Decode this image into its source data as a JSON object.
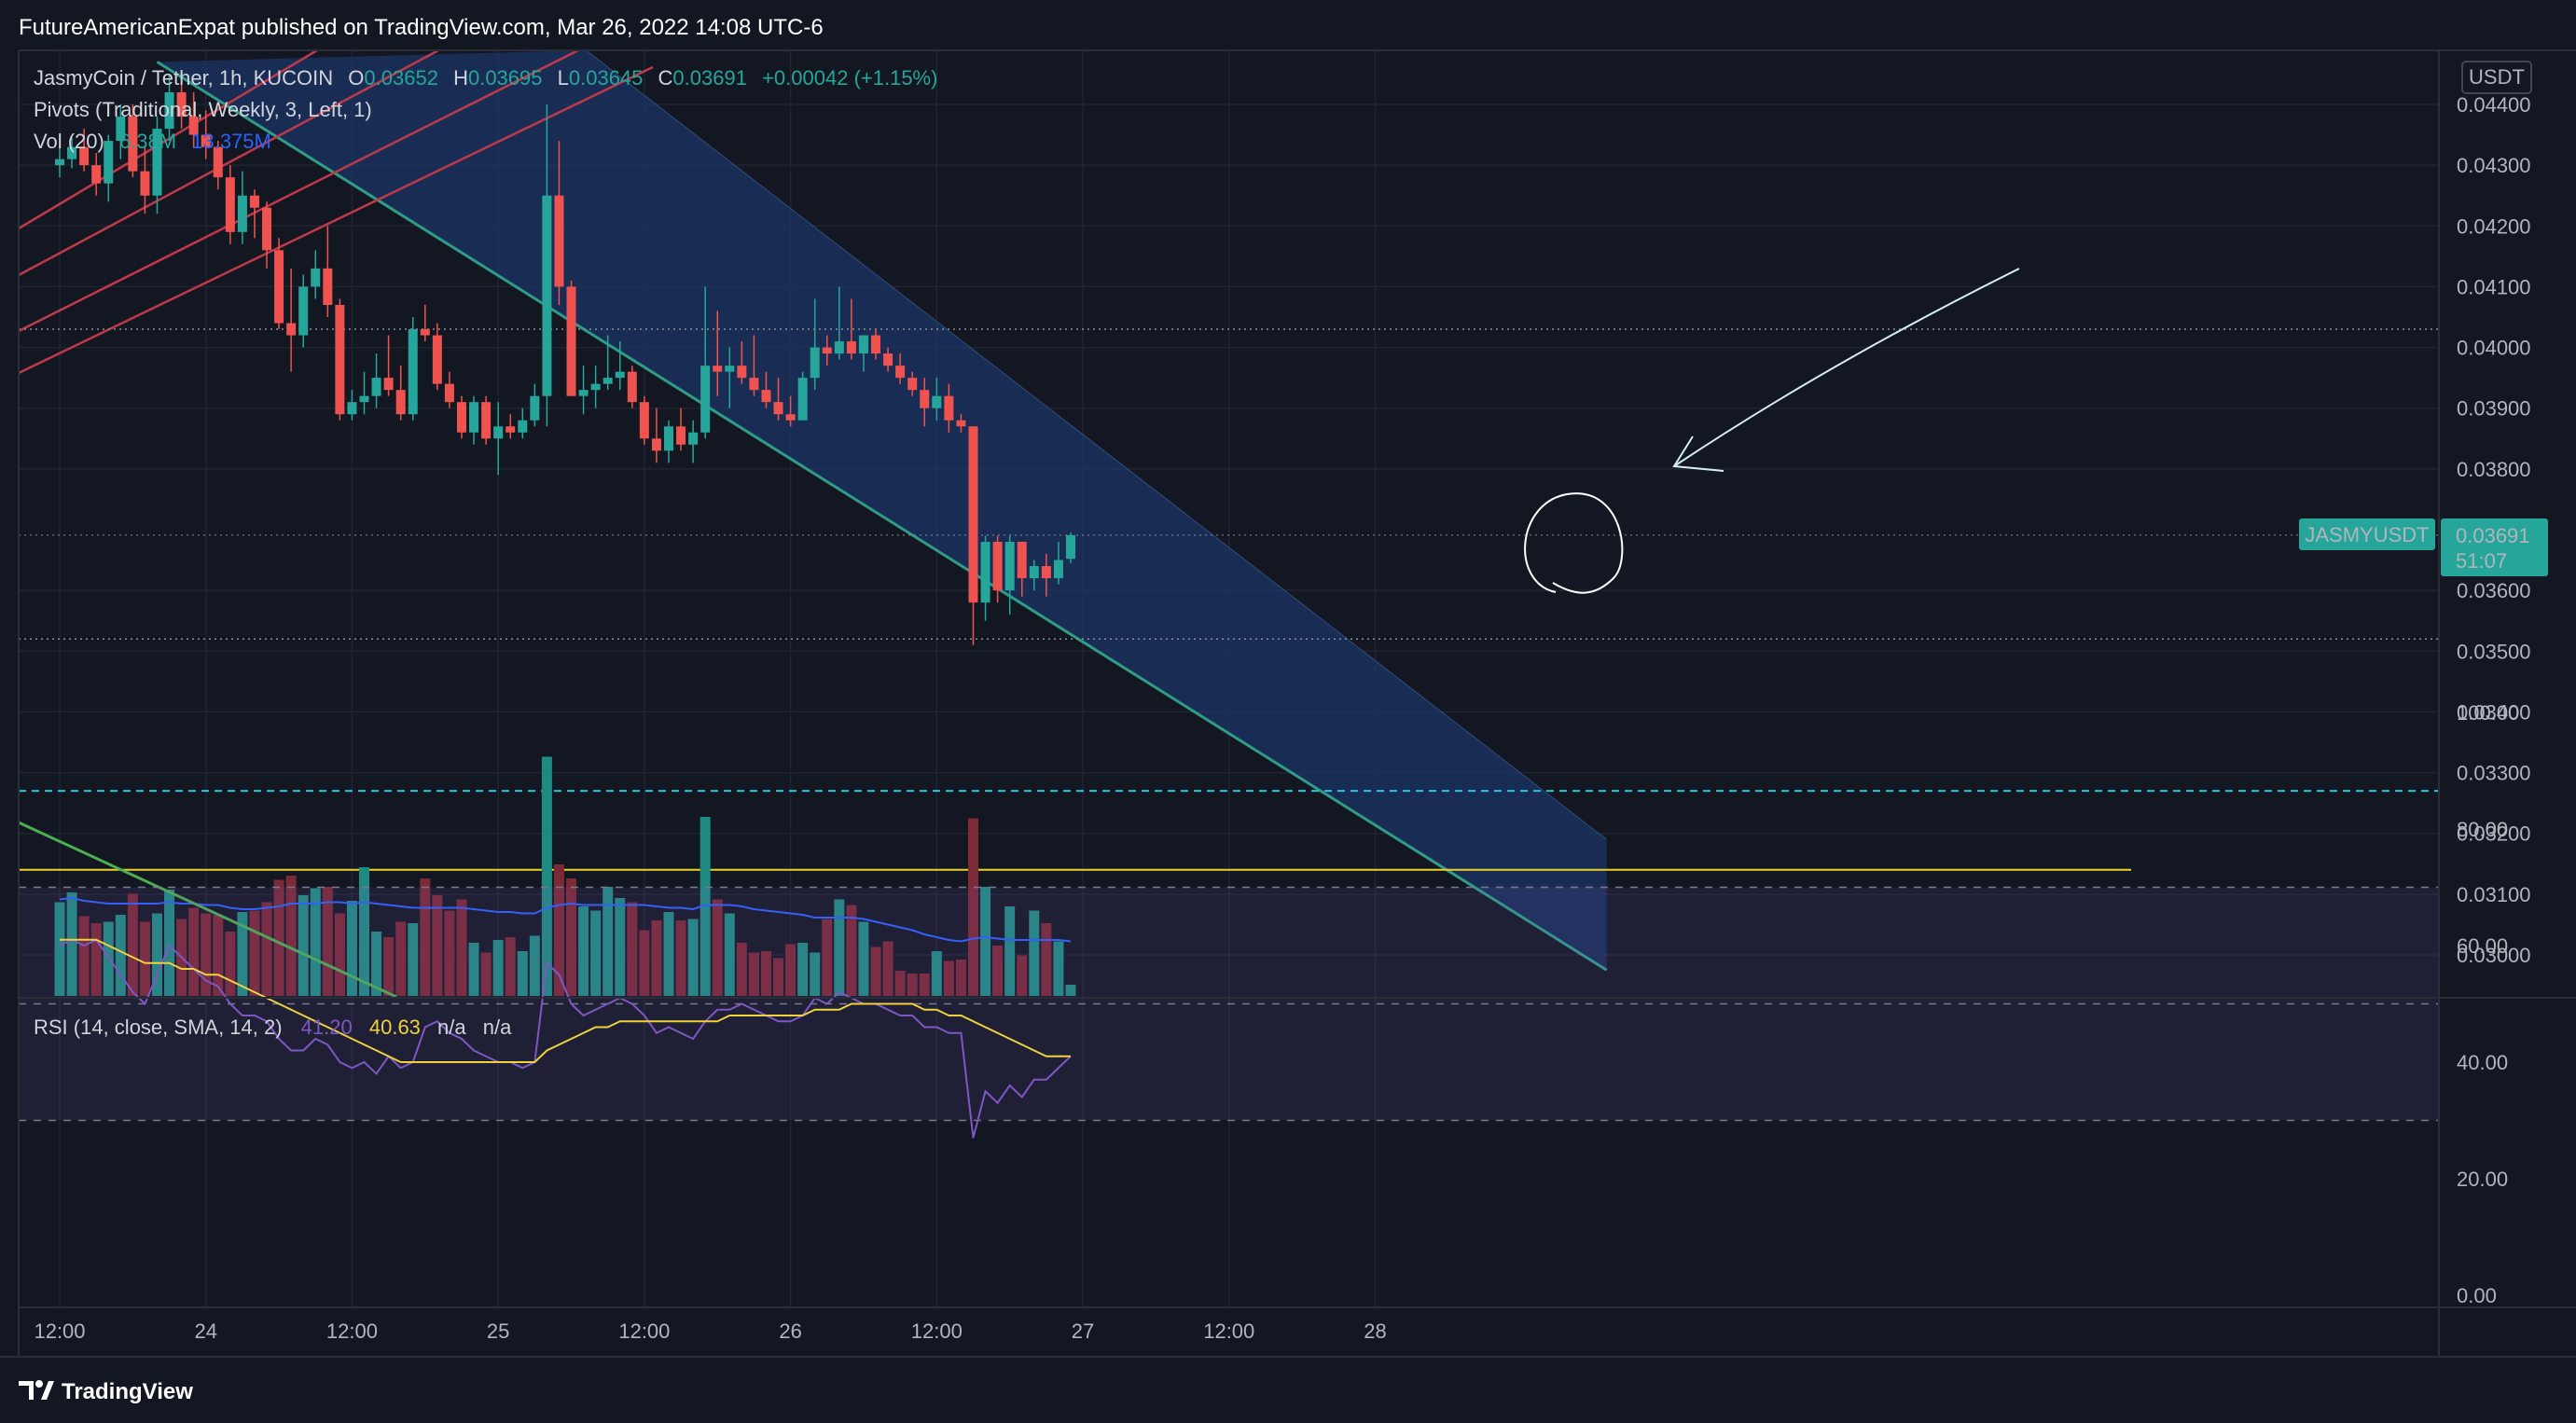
{
  "header": {
    "publish_text": "FutureAmericanExpat published on TradingView.com, Mar 26, 2022 14:08 UTC-6"
  },
  "footer": {
    "brand": "TradingView"
  },
  "legend": {
    "symbol": "JasmyCoin / Tether, 1h, KUCOIN",
    "o_label": "O",
    "o_value": "0.03652",
    "h_label": "H",
    "h_value": "0.03695",
    "l_label": "L",
    "l_value": "0.03645",
    "c_label": "C",
    "c_value": "0.03691",
    "change": "+0.00042 (+1.15%)",
    "pivots": "Pivots (Traditional, Weekly, 3, Left, 1)",
    "vol_label": "Vol (20)",
    "vol_value_1": "6.38M",
    "vol_value_2": "13.375M"
  },
  "price_axis": {
    "currency": "USDT",
    "ticks": [
      "0.04400",
      "0.04300",
      "0.04200",
      "0.04100",
      "0.04000",
      "0.03900",
      "0.03800",
      "0.03600",
      "0.03500",
      "0.03400",
      "0.03300",
      "0.03200",
      "0.03100",
      "0.03000"
    ]
  },
  "last_price": {
    "symbol": "JASMYUSDT",
    "price": "0.03691",
    "countdown": "51:07"
  },
  "rsi": {
    "label": "RSI (14, close, SMA, 14, 2)",
    "value": "41.20",
    "sma": "40.63",
    "extra_1": "n/a",
    "extra_2": "n/a",
    "ticks": [
      "100.00",
      "80.00",
      "60.00",
      "40.00",
      "20.00",
      "0.00"
    ]
  },
  "time_axis": {
    "labels": [
      "12:00",
      "24",
      "12:00",
      "25",
      "12:00",
      "26",
      "12:00",
      "27",
      "12:00",
      "28"
    ]
  },
  "colors": {
    "bg": "#131722",
    "up": "#26a69a",
    "down": "#ef5350",
    "vol_up": "#1f8a80",
    "vol_down": "#7c2a36",
    "channel_fill": "#1c3566",
    "channel_line": "#2e9c86",
    "vol_ma": "#2962ff",
    "rsi_line": "#7e57c2",
    "rsi_sma": "#f0d23c",
    "yellow_line": "#e8d22a",
    "cyan_dash": "#26c6da"
  },
  "chart_data": {
    "type": "candlestick",
    "title": "JasmyCoin / Tether, 1h, KUCOIN",
    "x_start": "2022-03-23 12:00",
    "x_interval_hours": 1,
    "x_axis_range": [
      "2022-03-23 11:00",
      "2022-03-28 19:00"
    ],
    "y_axis_range": [
      0.0295,
      0.0445
    ],
    "ohlc": [
      [
        0.043,
        0.0433,
        0.0428,
        0.0431
      ],
      [
        0.0431,
        0.04345,
        0.04295,
        0.0433
      ],
      [
        0.0433,
        0.0436,
        0.0429,
        0.043
      ],
      [
        0.043,
        0.0432,
        0.0425,
        0.0427
      ],
      [
        0.0427,
        0.0435,
        0.0424,
        0.0434
      ],
      [
        0.0434,
        0.044,
        0.0431,
        0.0438
      ],
      [
        0.0438,
        0.044,
        0.0428,
        0.0429
      ],
      [
        0.0429,
        0.0433,
        0.0422,
        0.0425
      ],
      [
        0.0425,
        0.0438,
        0.0422,
        0.0436
      ],
      [
        0.0436,
        0.0445,
        0.0434,
        0.0442
      ],
      [
        0.0442,
        0.0445,
        0.0436,
        0.0438
      ],
      [
        0.0438,
        0.0442,
        0.0433,
        0.0435
      ],
      [
        0.0435,
        0.0439,
        0.0431,
        0.0433
      ],
      [
        0.0433,
        0.0434,
        0.0426,
        0.0428
      ],
      [
        0.0428,
        0.043,
        0.0417,
        0.0419
      ],
      [
        0.0419,
        0.0429,
        0.0417,
        0.0425
      ],
      [
        0.0425,
        0.0426,
        0.0418,
        0.0423
      ],
      [
        0.0423,
        0.0424,
        0.0413,
        0.0416
      ],
      [
        0.0416,
        0.0418,
        0.0403,
        0.0404
      ],
      [
        0.0404,
        0.0413,
        0.0396,
        0.0402
      ],
      [
        0.0402,
        0.0412,
        0.04,
        0.041
      ],
      [
        0.041,
        0.0416,
        0.0408,
        0.0413
      ],
      [
        0.0413,
        0.042,
        0.0405,
        0.0407
      ],
      [
        0.0407,
        0.0408,
        0.0388,
        0.0389
      ],
      [
        0.0389,
        0.0393,
        0.0388,
        0.0391
      ],
      [
        0.0391,
        0.0396,
        0.0389,
        0.0392
      ],
      [
        0.0392,
        0.0399,
        0.039,
        0.0395
      ],
      [
        0.0395,
        0.0402,
        0.0392,
        0.0393
      ],
      [
        0.0393,
        0.0397,
        0.0388,
        0.0389
      ],
      [
        0.0389,
        0.0405,
        0.0388,
        0.0403
      ],
      [
        0.0403,
        0.0407,
        0.0401,
        0.0402
      ],
      [
        0.0402,
        0.0404,
        0.0393,
        0.0394
      ],
      [
        0.0394,
        0.0396,
        0.039,
        0.0391
      ],
      [
        0.0391,
        0.0392,
        0.0385,
        0.0386
      ],
      [
        0.0386,
        0.0392,
        0.0384,
        0.0391
      ],
      [
        0.0391,
        0.0392,
        0.0384,
        0.0385
      ],
      [
        0.0385,
        0.0391,
        0.0379,
        0.0387
      ],
      [
        0.0387,
        0.0389,
        0.0385,
        0.0386
      ],
      [
        0.0386,
        0.039,
        0.0385,
        0.0388
      ],
      [
        0.0388,
        0.0394,
        0.0387,
        0.0392
      ],
      [
        0.0392,
        0.044,
        0.0387,
        0.0425
      ],
      [
        0.0425,
        0.0434,
        0.0407,
        0.041
      ],
      [
        0.041,
        0.0411,
        0.0392,
        0.0392
      ],
      [
        0.0392,
        0.0397,
        0.0389,
        0.0393
      ],
      [
        0.0393,
        0.0397,
        0.039,
        0.0394
      ],
      [
        0.0394,
        0.0402,
        0.0393,
        0.0395
      ],
      [
        0.0395,
        0.0401,
        0.0393,
        0.0396
      ],
      [
        0.0396,
        0.0397,
        0.039,
        0.0391
      ],
      [
        0.0391,
        0.0392,
        0.0384,
        0.0385
      ],
      [
        0.0385,
        0.039,
        0.0381,
        0.0383
      ],
      [
        0.0383,
        0.0388,
        0.0381,
        0.0387
      ],
      [
        0.0387,
        0.039,
        0.0383,
        0.0384
      ],
      [
        0.0384,
        0.0388,
        0.0381,
        0.0386
      ],
      [
        0.0386,
        0.041,
        0.0385,
        0.0397
      ],
      [
        0.0397,
        0.0406,
        0.0392,
        0.0396
      ],
      [
        0.0396,
        0.04,
        0.039,
        0.0397
      ],
      [
        0.0397,
        0.0401,
        0.0394,
        0.0395
      ],
      [
        0.0395,
        0.0402,
        0.0392,
        0.0393
      ],
      [
        0.0393,
        0.0396,
        0.039,
        0.0391
      ],
      [
        0.0391,
        0.0395,
        0.0388,
        0.0389
      ],
      [
        0.0389,
        0.0392,
        0.0387,
        0.0388
      ],
      [
        0.0388,
        0.0396,
        0.0388,
        0.0395
      ],
      [
        0.0395,
        0.0408,
        0.0393,
        0.04
      ],
      [
        0.04,
        0.0402,
        0.0397,
        0.0399
      ],
      [
        0.0399,
        0.041,
        0.0398,
        0.0401
      ],
      [
        0.0401,
        0.0408,
        0.0398,
        0.0399
      ],
      [
        0.0399,
        0.0402,
        0.0396,
        0.0402
      ],
      [
        0.0402,
        0.0403,
        0.0398,
        0.0399
      ],
      [
        0.0399,
        0.04,
        0.0396,
        0.0397
      ],
      [
        0.0397,
        0.0399,
        0.0394,
        0.0395
      ],
      [
        0.0395,
        0.0396,
        0.0392,
        0.0393
      ],
      [
        0.0393,
        0.0395,
        0.0387,
        0.039
      ],
      [
        0.039,
        0.0395,
        0.0388,
        0.0392
      ],
      [
        0.0392,
        0.0394,
        0.0386,
        0.0388
      ],
      [
        0.0388,
        0.0389,
        0.0386,
        0.0387
      ],
      [
        0.0387,
        0.0387,
        0.0351,
        0.0358
      ],
      [
        0.0358,
        0.0369,
        0.0355,
        0.0368
      ],
      [
        0.0368,
        0.0369,
        0.0358,
        0.036
      ],
      [
        0.036,
        0.0369,
        0.0356,
        0.0368
      ],
      [
        0.0368,
        0.0368,
        0.0359,
        0.0362
      ],
      [
        0.0362,
        0.0365,
        0.036,
        0.0364
      ],
      [
        0.0364,
        0.0366,
        0.0359,
        0.0362
      ],
      [
        0.0362,
        0.0368,
        0.0361,
        0.0365
      ],
      [
        0.03652,
        0.03695,
        0.03645,
        0.03691
      ]
    ],
    "volume_scale": [
      0,
      100
    ],
    "volume": [
      67,
      74,
      57,
      52,
      53,
      58,
      73,
      53,
      59,
      76,
      55,
      63,
      59,
      58,
      46,
      60,
      61,
      67,
      83,
      86,
      72,
      77,
      78,
      59,
      68,
      92,
      46,
      42,
      53,
      52,
      84,
      72,
      61,
      69,
      38,
      31,
      40,
      42,
      32,
      43,
      171,
      94,
      84,
      64,
      61,
      78,
      70,
      67,
      47,
      54,
      60,
      54,
      55,
      128,
      69,
      59,
      38,
      31,
      32,
      27,
      37,
      38,
      31,
      55,
      69,
      65,
      53,
      35,
      39,
      18,
      16,
      16,
      32,
      25,
      26,
      127,
      78,
      36,
      64,
      29,
      61,
      52,
      39,
      8
    ],
    "volume_ma": [
      69,
      70,
      68,
      67,
      66,
      66,
      66,
      66,
      66,
      67,
      66,
      66,
      65,
      65,
      63,
      62,
      62,
      63,
      64,
      66,
      66,
      66,
      67,
      67,
      66,
      67,
      66,
      65,
      64,
      63,
      63,
      63,
      63,
      63,
      62,
      61,
      60,
      60,
      59,
      59,
      63,
      65,
      66,
      65,
      65,
      65,
      65,
      65,
      65,
      64,
      63,
      63,
      62,
      65,
      65,
      65,
      64,
      62,
      61,
      60,
      59,
      58,
      56,
      56,
      56,
      56,
      55,
      53,
      51,
      49,
      47,
      44,
      42,
      40,
      39,
      41,
      42,
      41,
      40,
      40,
      40,
      40,
      40,
      39
    ],
    "rsi": [
      60,
      61,
      60,
      61,
      58,
      55,
      52,
      50,
      55,
      60,
      58,
      56,
      54,
      53,
      50,
      48,
      48,
      47,
      44,
      42,
      42,
      44,
      43,
      40,
      39,
      40,
      38,
      41,
      39,
      40,
      46,
      47,
      45,
      44,
      42,
      41,
      40,
      40,
      39,
      40,
      57,
      55,
      50,
      48,
      49,
      50,
      51,
      50,
      48,
      45,
      46,
      45,
      44,
      47,
      49,
      49,
      50,
      49,
      48,
      47,
      47,
      48,
      51,
      50,
      52,
      51,
      50,
      50,
      49,
      48,
      48,
      46,
      46,
      45,
      45,
      27,
      35,
      33,
      36,
      34,
      37,
      37,
      39,
      41
    ],
    "rsi_sma": [
      61,
      61,
      61,
      61,
      60,
      59,
      58,
      57,
      57,
      57,
      56,
      56,
      55,
      55,
      54,
      53,
      52,
      51,
      50,
      49,
      48,
      47,
      46,
      45,
      44,
      43,
      42,
      41,
      40,
      40,
      40,
      40,
      40,
      40,
      40,
      40,
      40,
      40,
      40,
      40,
      42,
      43,
      44,
      45,
      46,
      46,
      47,
      47,
      47,
      47,
      47,
      47,
      47,
      47,
      47,
      48,
      48,
      48,
      48,
      48,
      48,
      48,
      49,
      49,
      49,
      50,
      50,
      50,
      50,
      50,
      50,
      49,
      49,
      48,
      48,
      47,
      46,
      45,
      44,
      43,
      42,
      41,
      41,
      41
    ],
    "rsi_scale": [
      0,
      100
    ],
    "rsi_bands": {
      "upper": 70,
      "middle": 50,
      "lower": 30
    },
    "channel": {
      "upper": [
        [
          "2022-03-23 20:00",
          0.0447
        ],
        [
          "2022-03-28 19:00",
          0.0319
        ]
      ],
      "lower": [
        [
          "2022-03-23 20:00",
          0.0447
        ],
        [
          "2022-03-28 19:00",
          0.02975
        ]
      ]
    },
    "pivot_levels": [
      0.0403,
      0.0352
    ],
    "horizontal_lines": {
      "yellow": 0.0314,
      "cyan_dashed": 0.0327
    },
    "volume_ma_legend": "13.375M",
    "last_price": 0.03691
  }
}
